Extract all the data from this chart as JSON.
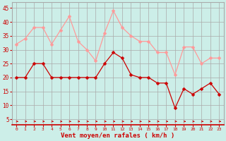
{
  "hours": [
    0,
    1,
    2,
    3,
    4,
    5,
    6,
    7,
    8,
    9,
    10,
    11,
    12,
    13,
    14,
    15,
    16,
    17,
    18,
    19,
    20,
    21,
    22,
    23
  ],
  "wind_avg": [
    20,
    20,
    25,
    25,
    20,
    20,
    20,
    20,
    20,
    20,
    25,
    29,
    27,
    21,
    20,
    20,
    18,
    18,
    9,
    16,
    14,
    16,
    18,
    14
  ],
  "wind_gust": [
    32,
    34,
    38,
    38,
    32,
    37,
    42,
    33,
    30,
    26,
    36,
    44,
    38,
    35,
    33,
    33,
    29,
    29,
    21,
    31,
    31,
    25,
    27,
    27
  ],
  "avg_color": "#cc0000",
  "gust_color": "#ff9999",
  "bg_color": "#cceee8",
  "grid_color": "#aaaaaa",
  "xlabel": "Vent moyen/en rafales ( km/h )",
  "xlabel_color": "#cc0000",
  "tick_color": "#cc0000",
  "spine_color": "#cc0000",
  "ylim": [
    3,
    47
  ],
  "yticks": [
    5,
    10,
    15,
    20,
    25,
    30,
    35,
    40,
    45
  ],
  "marker_size": 2.5,
  "line_width": 0.9
}
